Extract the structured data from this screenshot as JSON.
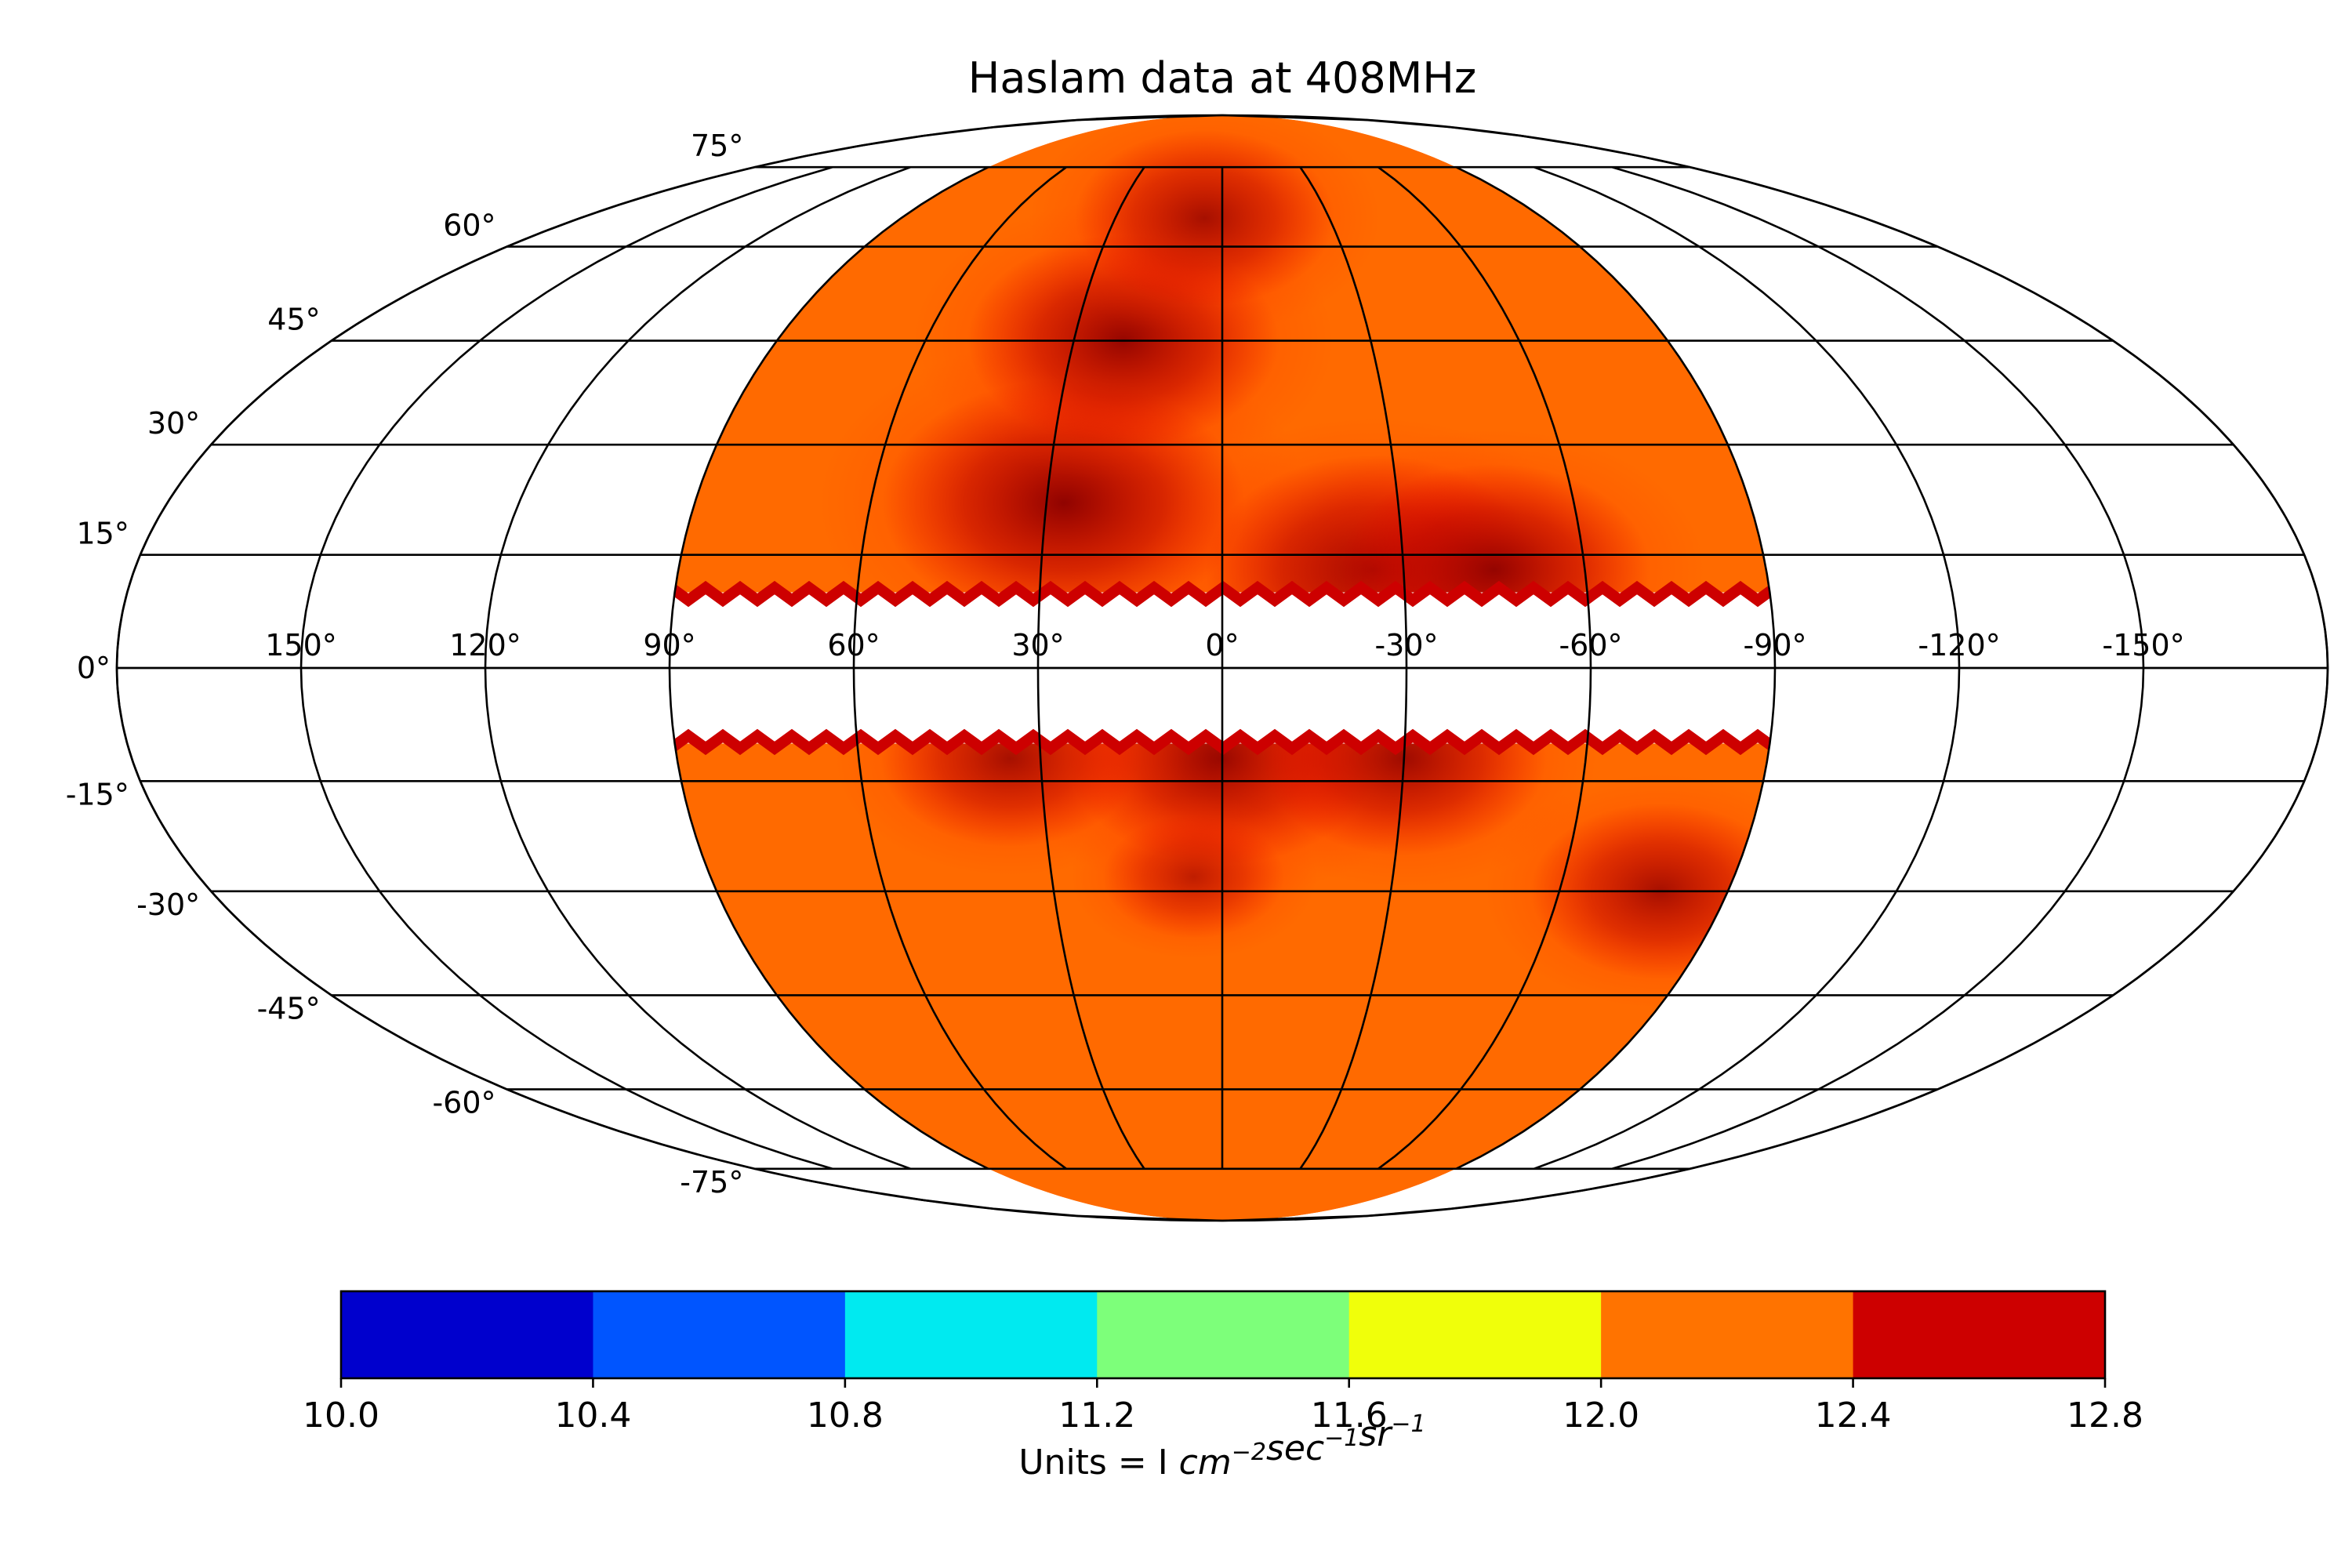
{
  "chart_data": {
    "type": "heatmap",
    "projection": "mollweide",
    "title": "Haslam data at 408MHz",
    "grid": true,
    "longitude_ticks": [
      "150°",
      "120°",
      "90°",
      "60°",
      "30°",
      "0°",
      "-30°",
      "-60°",
      "-90°",
      "-120°",
      "-150°"
    ],
    "longitude_values": [
      150,
      120,
      90,
      60,
      30,
      0,
      -30,
      -60,
      -90,
      -120,
      -150
    ],
    "latitude_ticks": [
      "75°",
      "60°",
      "45°",
      "30°",
      "15°",
      "0°",
      "-15°",
      "-30°",
      "-45°",
      "-60°",
      "-75°"
    ],
    "latitude_values": [
      75,
      60,
      45,
      30,
      15,
      0,
      -15,
      -30,
      -45,
      -60,
      -75
    ],
    "data_extent": {
      "lon_range": [
        -90,
        90
      ],
      "lat_masked_range": [
        -10,
        10
      ]
    },
    "hotspots": [
      {
        "lon": 27,
        "lat": 22,
        "value": 12.8
      },
      {
        "lon": 20,
        "lat": 45,
        "value": 12.7
      },
      {
        "lon": 5,
        "lat": 65,
        "value": 12.6
      },
      {
        "lon": -25,
        "lat": 13,
        "value": 12.75
      },
      {
        "lon": -45,
        "lat": 13,
        "value": 12.7
      },
      {
        "lon": 0,
        "lat": -12,
        "value": 12.7
      },
      {
        "lon": -30,
        "lat": -12,
        "value": 12.65
      },
      {
        "lon": 35,
        "lat": -12,
        "value": 12.6
      },
      {
        "lon": 5,
        "lat": -28,
        "value": 12.45
      },
      {
        "lon": -78,
        "lat": -30,
        "value": 12.6
      }
    ],
    "colorbar": {
      "min": 10.0,
      "max": 12.8,
      "bins": [
        {
          "from": 10.0,
          "to": 10.4,
          "color": "#0000cd"
        },
        {
          "from": 10.4,
          "to": 10.8,
          "color": "#0055ff"
        },
        {
          "from": 10.8,
          "to": 11.2,
          "color": "#00eaf0"
        },
        {
          "from": 11.2,
          "to": 11.6,
          "color": "#7dff7a"
        },
        {
          "from": 11.6,
          "to": 12.0,
          "color": "#f0ff0a"
        },
        {
          "from": 12.0,
          "to": 12.4,
          "color": "#ff7300"
        },
        {
          "from": 12.4,
          "to": 12.8,
          "color": "#cd0000"
        }
      ],
      "tick_labels": [
        "10.0",
        "10.4",
        "10.8",
        "11.2",
        "11.6",
        "12.0",
        "12.4",
        "12.8"
      ],
      "label_prefix": "Units = I ",
      "label_terms": [
        {
          "base": "cm",
          "exp": "−2"
        },
        {
          "base": "sec",
          "exp": "−1"
        },
        {
          "base": "sr",
          "exp": "−1"
        }
      ]
    }
  }
}
